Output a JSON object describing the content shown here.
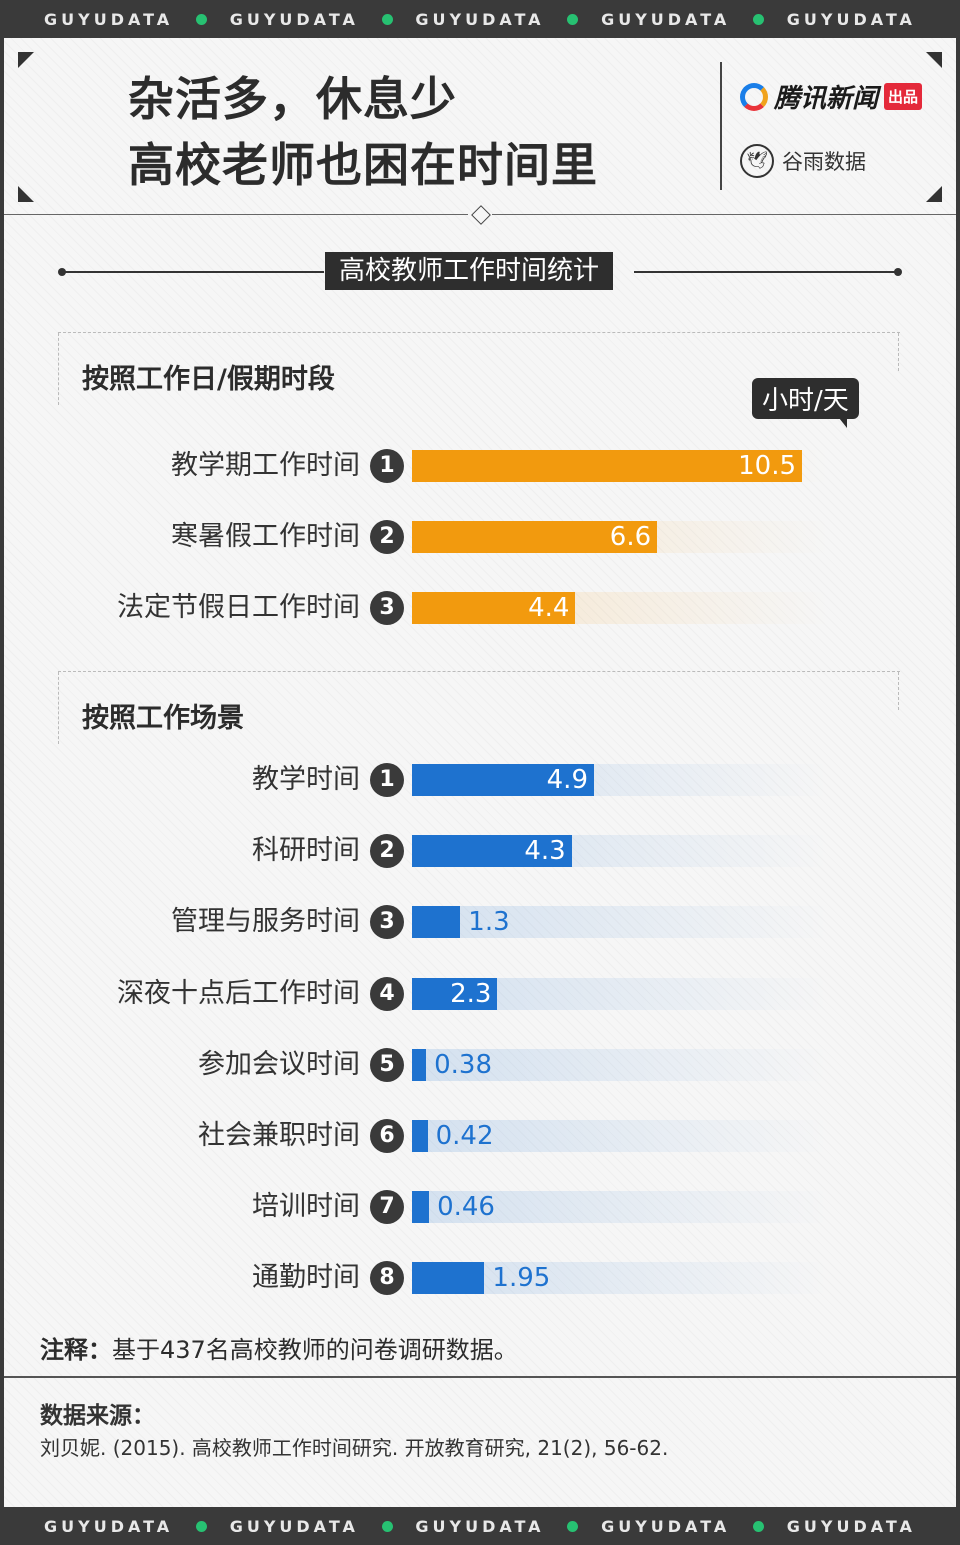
{
  "band": {
    "word": "GUYUDATA"
  },
  "header": {
    "title_line1": "杂活多，休息少",
    "title_line2": "高校老师也困在时间里",
    "brand1_name": "腾讯新闻",
    "brand1_tag": "出品",
    "brand2_name": "谷雨数据"
  },
  "section_title": "高校教师工作时间统计",
  "unit_label": "小时/天",
  "colors": {
    "orange": "#f29a0e",
    "blue": "#1e72cf",
    "dot_green": "#27c172"
  },
  "chart_data": [
    {
      "type": "bar",
      "orientation": "horizontal",
      "title": "按照工作日/假期时段",
      "unit": "小时/天",
      "categories": [
        "教学期工作时间",
        "寒暑假工作时间",
        "法定节假日工作时间"
      ],
      "values": [
        10.5,
        6.6,
        4.4
      ],
      "value_labels": [
        "10.5",
        "6.6",
        "4.4"
      ],
      "color": "#f29a0e",
      "xlim": [
        0,
        10.5
      ]
    },
    {
      "type": "bar",
      "orientation": "horizontal",
      "title": "按照工作场景",
      "unit": "小时/天",
      "categories": [
        "教学时间",
        "科研时间",
        "管理与服务时间",
        "深夜十点后工作时间",
        "参加会议时间",
        "社会兼职时间",
        "培训时间",
        "通勤时间"
      ],
      "values": [
        4.9,
        4.3,
        1.3,
        2.3,
        0.38,
        0.42,
        0.46,
        1.95
      ],
      "value_labels": [
        "4.9",
        "4.3",
        "1.3",
        "2.3",
        "0.38",
        "0.42",
        "0.46",
        "1.95"
      ],
      "color": "#1e72cf",
      "xlim": [
        0,
        10.5
      ]
    }
  ],
  "note": {
    "label": "注释：",
    "text": "基于437名高校教师的问卷调研数据。"
  },
  "source": {
    "label": "数据来源：",
    "text": "刘贝妮. (2015). 高校教师工作时间研究. 开放教育研究, 21(2), 56-62."
  }
}
